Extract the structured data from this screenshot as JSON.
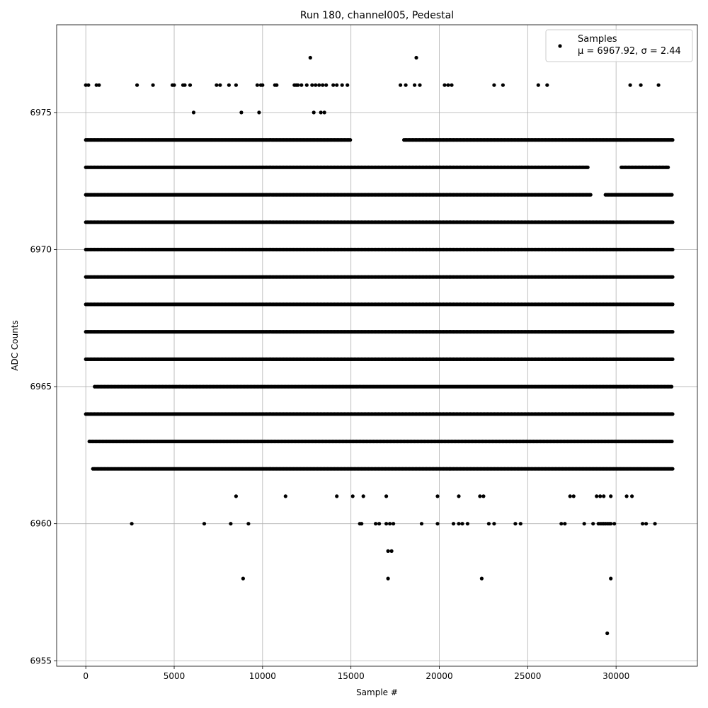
{
  "chart_data": {
    "type": "scatter",
    "title": "Run 180, channel005, Pedestal",
    "xlabel": "Sample #",
    "ylabel": "ADC Counts",
    "xlim": [
      -1650,
      34600
    ],
    "ylim": [
      6954.8,
      6978.2
    ],
    "xticks": [
      0,
      5000,
      10000,
      15000,
      20000,
      25000,
      30000
    ],
    "yticks": [
      6955,
      6960,
      6965,
      6970,
      6975
    ],
    "grid": true,
    "marker_color": "#000000",
    "legend": {
      "placement": "upper right",
      "label": "Samples",
      "stats": "μ = 6967.92, σ = 2.44"
    },
    "n_samples": 33200,
    "series": [
      {
        "name": "Samples",
        "levels": [
          {
            "y": 6966,
            "ranges": [
              [
                0,
                33200
              ]
            ]
          },
          {
            "y": 6967,
            "ranges": [
              [
                0,
                33200
              ]
            ]
          },
          {
            "y": 6968,
            "ranges": [
              [
                0,
                33200
              ]
            ]
          },
          {
            "y": 6969,
            "ranges": [
              [
                0,
                33200
              ]
            ]
          },
          {
            "y": 6970,
            "ranges": [
              [
                0,
                33200
              ]
            ]
          },
          {
            "y": 6972,
            "ranges": [
              [
                0,
                28600
              ],
              [
                29400,
                33200
              ]
            ]
          },
          {
            "y": 6964,
            "ranges": [
              [
                0,
                33200
              ]
            ]
          },
          {
            "y": 6963,
            "ranges": [
              [
                200,
                33200
              ]
            ]
          },
          {
            "y": 6962,
            "ranges": [
              [
                400,
                33200
              ]
            ]
          },
          {
            "y": 6973,
            "ranges": [
              [
                0,
                28400
              ],
              [
                30300,
                33000
              ]
            ]
          },
          {
            "y": 6974,
            "ranges": [
              [
                0,
                15000
              ],
              [
                18000,
                33200
              ]
            ]
          },
          {
            "y": 6971,
            "ranges": [
              [
                0,
                33200
              ]
            ]
          },
          {
            "y": 6965,
            "ranges": [
              [
                500,
                33200
              ]
            ]
          }
        ],
        "points": [
          [
            0,
            6976
          ],
          [
            150,
            6976
          ],
          [
            600,
            6976
          ],
          [
            750,
            6976
          ],
          [
            2900,
            6976
          ],
          [
            3800,
            6976
          ],
          [
            4900,
            6976
          ],
          [
            5000,
            6976
          ],
          [
            5500,
            6976
          ],
          [
            5600,
            6976
          ],
          [
            5900,
            6976
          ],
          [
            7400,
            6976
          ],
          [
            7600,
            6976
          ],
          [
            8100,
            6976
          ],
          [
            8500,
            6976
          ],
          [
            9700,
            6976
          ],
          [
            9900,
            6976
          ],
          [
            10000,
            6976
          ],
          [
            10700,
            6976
          ],
          [
            10800,
            6976
          ],
          [
            11800,
            6976
          ],
          [
            11900,
            6976
          ],
          [
            12000,
            6976
          ],
          [
            12200,
            6976
          ],
          [
            12500,
            6976
          ],
          [
            12800,
            6976
          ],
          [
            13000,
            6976
          ],
          [
            13200,
            6976
          ],
          [
            13400,
            6976
          ],
          [
            13600,
            6976
          ],
          [
            14000,
            6976
          ],
          [
            14200,
            6976
          ],
          [
            14500,
            6976
          ],
          [
            14800,
            6976
          ],
          [
            17800,
            6976
          ],
          [
            18100,
            6976
          ],
          [
            18600,
            6976
          ],
          [
            18900,
            6976
          ],
          [
            20300,
            6976
          ],
          [
            20500,
            6976
          ],
          [
            20700,
            6976
          ],
          [
            23100,
            6976
          ],
          [
            23600,
            6976
          ],
          [
            25600,
            6976
          ],
          [
            26100,
            6976
          ],
          [
            30800,
            6976
          ],
          [
            31400,
            6976
          ],
          [
            32400,
            6976
          ],
          [
            12700,
            6977
          ],
          [
            18700,
            6977
          ],
          [
            6100,
            6975
          ],
          [
            8800,
            6975
          ],
          [
            9800,
            6975
          ],
          [
            12900,
            6975
          ],
          [
            13300,
            6975
          ],
          [
            13500,
            6975
          ],
          [
            2600,
            6960
          ],
          [
            6700,
            6960
          ],
          [
            8200,
            6960
          ],
          [
            9200,
            6960
          ],
          [
            15500,
            6960
          ],
          [
            15600,
            6960
          ],
          [
            16400,
            6960
          ],
          [
            16600,
            6960
          ],
          [
            17000,
            6960
          ],
          [
            17200,
            6960
          ],
          [
            17400,
            6960
          ],
          [
            19000,
            6960
          ],
          [
            19900,
            6960
          ],
          [
            20800,
            6960
          ],
          [
            21100,
            6960
          ],
          [
            21300,
            6960
          ],
          [
            21600,
            6960
          ],
          [
            22800,
            6960
          ],
          [
            23100,
            6960
          ],
          [
            24300,
            6960
          ],
          [
            24600,
            6960
          ],
          [
            26900,
            6960
          ],
          [
            27100,
            6960
          ],
          [
            28200,
            6960
          ],
          [
            28700,
            6960
          ],
          [
            29000,
            6960
          ],
          [
            29100,
            6960
          ],
          [
            29200,
            6960
          ],
          [
            29300,
            6960
          ],
          [
            29400,
            6960
          ],
          [
            29500,
            6960
          ],
          [
            29600,
            6960
          ],
          [
            29700,
            6960
          ],
          [
            29900,
            6960
          ],
          [
            31500,
            6960
          ],
          [
            31700,
            6960
          ],
          [
            32200,
            6960
          ],
          [
            8500,
            6961
          ],
          [
            11300,
            6961
          ],
          [
            14200,
            6961
          ],
          [
            15100,
            6961
          ],
          [
            15700,
            6961
          ],
          [
            17000,
            6961
          ],
          [
            19900,
            6961
          ],
          [
            21100,
            6961
          ],
          [
            22300,
            6961
          ],
          [
            22500,
            6961
          ],
          [
            27400,
            6961
          ],
          [
            27600,
            6961
          ],
          [
            28900,
            6961
          ],
          [
            29100,
            6961
          ],
          [
            29300,
            6961
          ],
          [
            29700,
            6961
          ],
          [
            30600,
            6961
          ],
          [
            30900,
            6961
          ],
          [
            17100,
            6959
          ],
          [
            17300,
            6959
          ],
          [
            8900,
            6958
          ],
          [
            17100,
            6958
          ],
          [
            22400,
            6958
          ],
          [
            29700,
            6958
          ],
          [
            29500,
            6956
          ]
        ]
      }
    ]
  }
}
